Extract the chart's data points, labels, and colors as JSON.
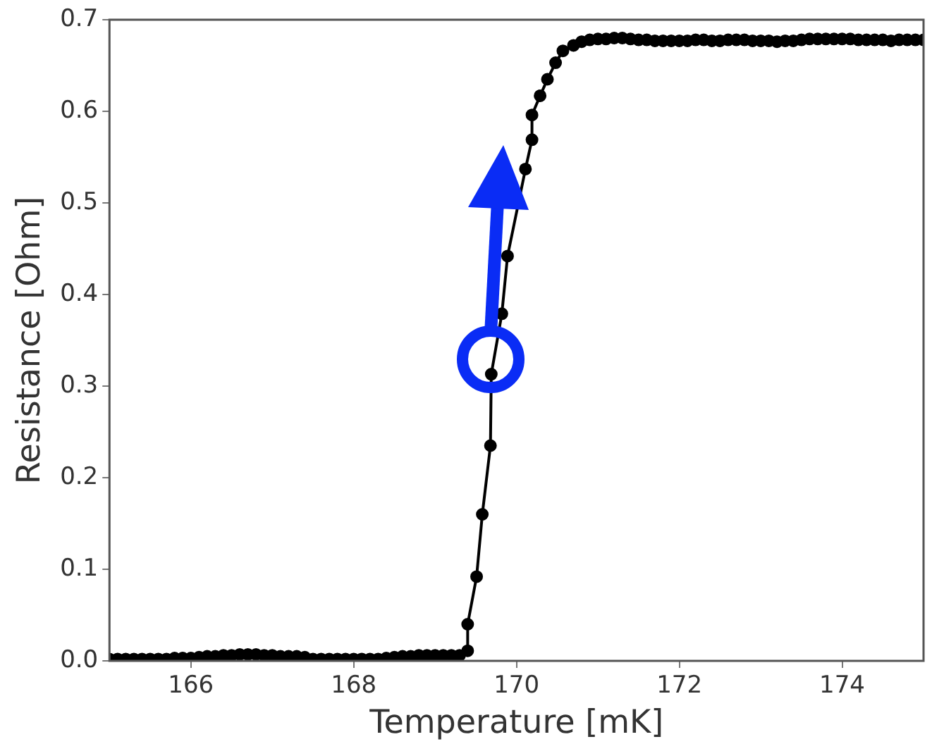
{
  "chart_data": {
    "type": "line",
    "xlabel": "Temperature [mK]",
    "ylabel": "Resistance [Ohm]",
    "xlim": [
      165,
      175
    ],
    "ylim": [
      0,
      0.7
    ],
    "xticks": [
      166,
      168,
      170,
      172,
      174
    ],
    "yticks": [
      {
        "value": 0,
        "label": "0.0"
      },
      0.1,
      0.2,
      0.3,
      0.4,
      0.5,
      0.6,
      0.7
    ],
    "grid": false,
    "marker": "circle",
    "line_style": "solid",
    "x": [
      165.0,
      165.1,
      165.2,
      165.3,
      165.4,
      165.5,
      165.6,
      165.7,
      165.8,
      165.9,
      166.0,
      166.1,
      166.2,
      166.3,
      166.4,
      166.5,
      166.6,
      166.7,
      166.8,
      166.9,
      167.0,
      167.1,
      167.2,
      167.3,
      167.4,
      167.5,
      167.6,
      167.7,
      167.8,
      167.9,
      168.0,
      168.1,
      168.2,
      168.3,
      168.4,
      168.5,
      168.6,
      168.7,
      168.8,
      168.9,
      169.0,
      169.1,
      169.2,
      169.3,
      169.4,
      169.4,
      169.51,
      169.58,
      169.68,
      169.69,
      169.82,
      169.89,
      170.0,
      170.11,
      170.19,
      170.19,
      170.29,
      170.38,
      170.48,
      170.57,
      170.7,
      170.8,
      170.9,
      171.0,
      171.1,
      171.2,
      171.3,
      171.4,
      171.5,
      171.6,
      171.7,
      171.8,
      171.9,
      172.0,
      172.1,
      172.2,
      172.3,
      172.4,
      172.5,
      172.6,
      172.7,
      172.8,
      172.9,
      173.0,
      173.1,
      173.2,
      173.3,
      173.4,
      173.5,
      173.6,
      173.7,
      173.8,
      173.9,
      174.0,
      174.1,
      174.2,
      174.3,
      174.4,
      174.5,
      174.6,
      174.7,
      174.8,
      174.9,
      175.0
    ],
    "series": [
      {
        "color": "#000000",
        "values": [
          0.002,
          0.002,
          0.002,
          0.002,
          0.002,
          0.002,
          0.002,
          0.002,
          0.003,
          0.003,
          0.003,
          0.004,
          0.005,
          0.005,
          0.006,
          0.006,
          0.007,
          0.007,
          0.007,
          0.006,
          0.006,
          0.005,
          0.005,
          0.005,
          0.004,
          0.002,
          0.002,
          0.002,
          0.002,
          0.002,
          0.002,
          0.002,
          0.002,
          0.002,
          0.003,
          0.004,
          0.005,
          0.005,
          0.006,
          0.006,
          0.006,
          0.006,
          0.006,
          0.006,
          0.011,
          0.04,
          0.092,
          0.16,
          0.235,
          0.313,
          0.379,
          0.442,
          null,
          0.537,
          0.569,
          0.596,
          0.617,
          0.635,
          0.653,
          0.666,
          0.672,
          0.676,
          0.678,
          0.679,
          0.679,
          0.68,
          0.68,
          0.679,
          0.678,
          0.678,
          0.677,
          0.677,
          0.677,
          0.677,
          0.677,
          0.678,
          0.678,
          0.677,
          0.677,
          0.678,
          0.678,
          0.678,
          0.677,
          0.677,
          0.677,
          0.676,
          0.677,
          0.677,
          0.678,
          0.679,
          0.679,
          0.679,
          0.679,
          0.679,
          0.679,
          0.678,
          0.678,
          0.678,
          0.678,
          0.677,
          0.678,
          0.678,
          0.678,
          0.678
        ]
      }
    ]
  }
}
